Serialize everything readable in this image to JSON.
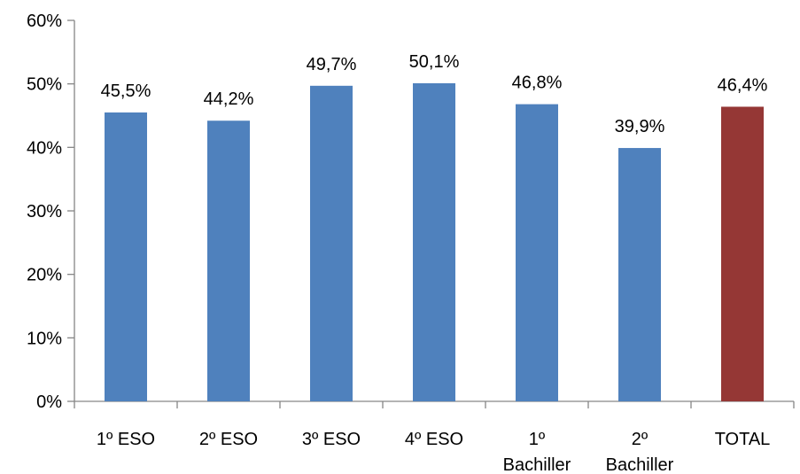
{
  "chart_data": {
    "type": "bar",
    "title": "",
    "xlabel": "",
    "ylabel": "",
    "ylim": [
      0,
      60
    ],
    "y_ticks": [
      0,
      10,
      20,
      30,
      40,
      50,
      60
    ],
    "y_tick_suffix": "%",
    "grid": false,
    "legend": "none",
    "categories": [
      [
        "1º ESO"
      ],
      [
        "2º ESO"
      ],
      [
        "3º ESO"
      ],
      [
        "4º ESO"
      ],
      [
        "1º",
        "Bachiller"
      ],
      [
        "2º",
        "Bachiller"
      ],
      [
        "TOTAL"
      ]
    ],
    "values": [
      45.5,
      44.2,
      49.7,
      50.1,
      46.8,
      39.9,
      46.4
    ],
    "data_labels": [
      "45,5%",
      "44,2%",
      "49,7%",
      "50,1%",
      "46,8%",
      "39,9%",
      "46,4%"
    ],
    "colors": {
      "default_bar": "#4F81BD",
      "highlight_bar": "#953735",
      "axis": "#868686"
    },
    "highlight_index": 6
  }
}
